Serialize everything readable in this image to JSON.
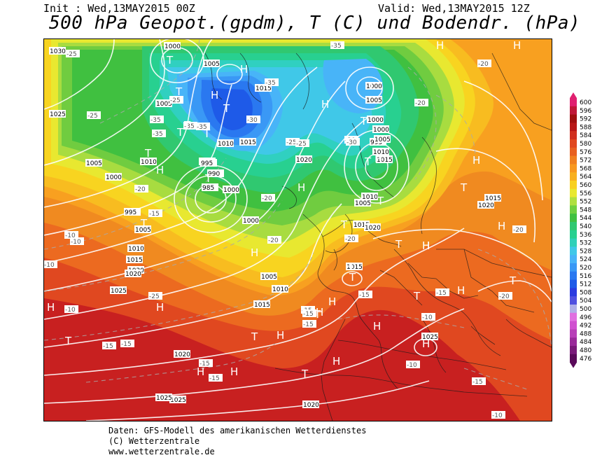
{
  "header": {
    "init": "Init : Wed,13MAY2015 00Z",
    "valid": "Valid: Wed,13MAY2015 12Z",
    "title": "500 hPa Geopot.(gpdm), T (C) und Bodendr. (hPa)"
  },
  "colors": {
    "c476": "#5a0a5a",
    "c480": "#7a1a7a",
    "c484": "#9a2a9a",
    "c488": "#b840b8",
    "c492": "#d050d0",
    "c496": "#e070e0",
    "c500": "#b0b0e8",
    "c504": "#5050e0",
    "c508": "#2a3ae0",
    "c512": "#1e5ae8",
    "c516": "#2a78f0",
    "c520": "#3a98f5",
    "c524": "#48b4f8",
    "c528": "#40c8e8",
    "c532": "#30d0b8",
    "c536": "#28d090",
    "c540": "#30c870",
    "c544": "#40c040",
    "c548": "#70d040",
    "c552": "#b0e040",
    "c556": "#e8e830",
    "c560": "#f8d020",
    "c564": "#f8b020",
    "c568": "#f89820",
    "c572": "#f08020",
    "c576": "#e86020",
    "c580": "#e04820",
    "c584": "#d03020",
    "c588": "#b81818",
    "c592": "#a01010",
    "c596": "#c01838",
    "c600": "#e02070"
  },
  "legend": {
    "levels": [
      "600",
      "596",
      "592",
      "588",
      "584",
      "580",
      "576",
      "572",
      "568",
      "564",
      "560",
      "556",
      "552",
      "548",
      "544",
      "540",
      "536",
      "532",
      "528",
      "524",
      "520",
      "516",
      "512",
      "508",
      "504",
      "500",
      "496",
      "492",
      "488",
      "484",
      "480",
      "476"
    ]
  },
  "isobar_labels": [
    "1030",
    "1025",
    "1000",
    "1005",
    "1005",
    "1015",
    "1005",
    "1000",
    "995",
    "990",
    "985",
    "1010",
    "1015",
    "1015",
    "1000",
    "1005",
    "1020",
    "995",
    "1010",
    "1015",
    "1020",
    "1010",
    "1005",
    "1015",
    "1025",
    "1020",
    "1020",
    "1025",
    "1025",
    "1020",
    "995",
    "1000",
    "1005",
    "1015",
    "1010",
    "1015",
    "1020",
    "1005",
    "1010",
    "1000",
    "1000",
    "1005",
    "1010",
    "1015",
    "1000",
    "1015",
    "1020",
    "1025"
  ],
  "temp_labels": [
    "-25",
    "-25",
    "-35",
    "-35",
    "-35",
    "-30",
    "-35",
    "-35",
    "-25",
    "-25",
    "-30",
    "-30",
    "-20",
    "-20",
    "-20",
    "-15",
    "-10",
    "-10",
    "-10",
    "-10",
    "-15",
    "-15",
    "-15",
    "-15",
    "-15",
    "-10",
    "-10",
    "-15",
    "-15",
    "-20",
    "-20",
    "-20",
    "-15",
    "-25",
    "-35",
    "-25",
    "-20",
    "-20",
    "-10",
    "-15",
    "-15"
  ],
  "pressure_marks": [
    "T",
    "H",
    "T",
    "T",
    "T",
    "T",
    "T",
    "H",
    "T",
    "T",
    "T",
    "H",
    "T",
    "H",
    "H",
    "T",
    "T",
    "T",
    "H",
    "H",
    "T",
    "H",
    "T",
    "H",
    "T",
    "H",
    "H",
    "H",
    "T",
    "H",
    "H",
    "H",
    "H",
    "H",
    "T",
    "H",
    "T",
    "H",
    "T",
    "H",
    "T",
    "H",
    "T",
    "H",
    "H",
    "T",
    "H",
    "H"
  ],
  "footer": {
    "line1": "Daten: GFS-Modell des amerikanischen Wetterdienstes",
    "line2": "(C) Wetterzentrale",
    "line3": "www.wetterzentrale.de"
  }
}
